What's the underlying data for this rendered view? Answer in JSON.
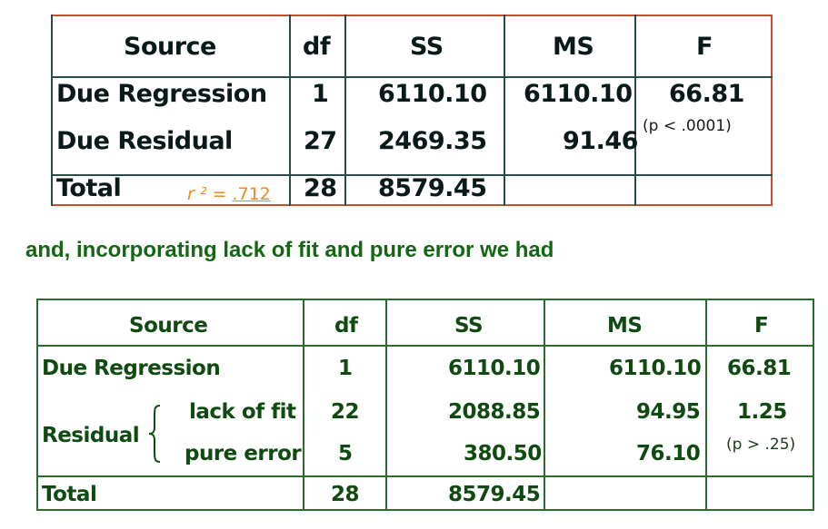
{
  "table1": {
    "headers": {
      "source": "Source",
      "df": "df",
      "ss": "SS",
      "ms": "MS",
      "f": "F"
    },
    "rows": [
      {
        "source": "Due Regression",
        "df": "1",
        "ss": "6110.10",
        "ms": "6110.10",
        "f": "66.81"
      },
      {
        "source": "Due Residual",
        "df": "27",
        "ss": "2469.35",
        "ms": "91.46",
        "f_note": "(p < .0001)"
      },
      {
        "source": "Total",
        "df": "28",
        "ss": "8579.45"
      }
    ],
    "r2_prefix": "r ² = ",
    "r2_value": ".712"
  },
  "middle_text": "and, incorporating lack of fit and pure error we had",
  "table2": {
    "headers": {
      "source": "Source",
      "df": "df",
      "ss": "SS",
      "ms": "MS",
      "f": "F"
    },
    "rows": [
      {
        "source": "Due Regression",
        "df": "1",
        "ss": "6110.10",
        "ms": "6110.10",
        "f": "66.81"
      },
      {
        "group": "Residual",
        "source": "lack of fit",
        "df": "22",
        "ss": "2088.85",
        "ms": "94.95",
        "f": "1.25"
      },
      {
        "source": "pure error",
        "df": "5",
        "ss": "380.50",
        "ms": "76.10",
        "f_note": "(p > .25)"
      },
      {
        "source": "Total",
        "df": "28",
        "ss": "8579.45"
      }
    ]
  },
  "colors": {
    "table1_border": "#c94f2a",
    "table2_border": "#2d6b2d",
    "table1_text": "#0a1a1a",
    "table2_text": "#0f4a10",
    "r2_accent": "#f08a1c",
    "heading_green": "#146614"
  }
}
